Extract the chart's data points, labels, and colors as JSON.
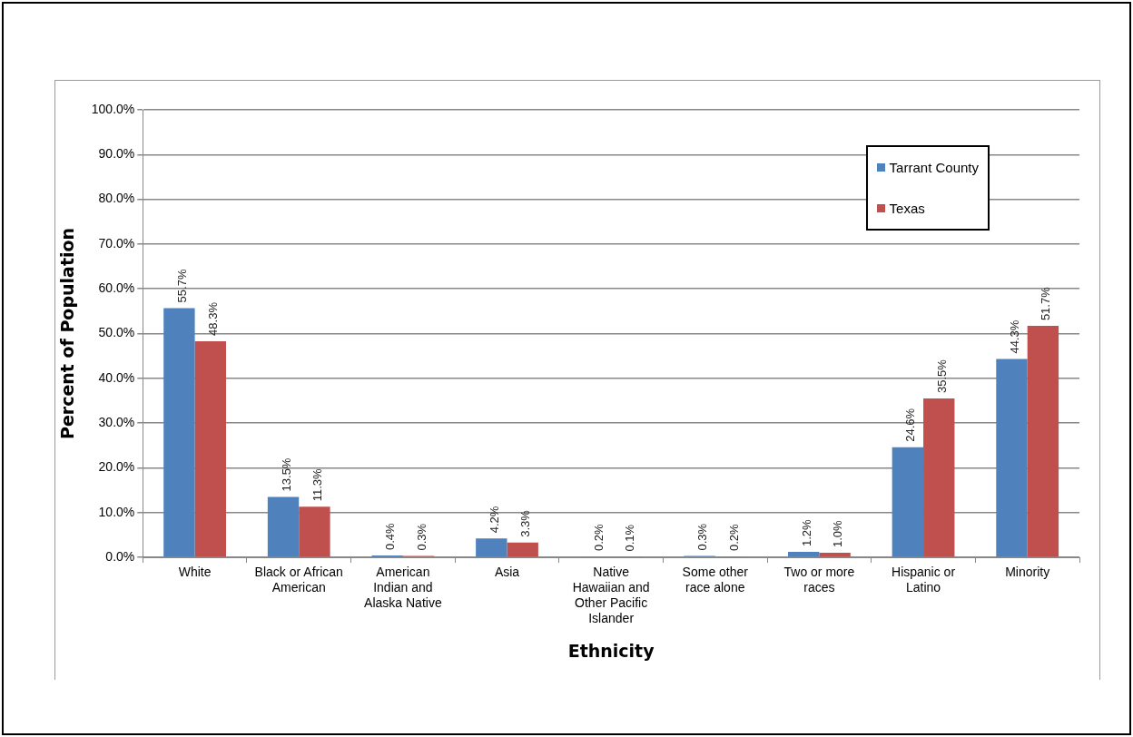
{
  "chart_data": {
    "type": "bar",
    "xlabel": "Ethnicity",
    "ylabel": "Percent of Population",
    "categories": [
      "White",
      "Black or African American",
      "American Indian and Alaska Native",
      "Asia",
      "Native Hawaiian and Other Pacific Islander",
      "Some other race alone",
      "Two or more races",
      "Hispanic or Latino",
      "Minority"
    ],
    "series": [
      {
        "name": "Tarrant County",
        "color": "#4f81bd",
        "values": [
          55.7,
          13.5,
          0.4,
          4.2,
          0.2,
          0.3,
          1.2,
          24.6,
          44.3
        ],
        "value_labels": [
          "55.7%",
          "13.5%",
          "0.4%",
          "4.2%",
          "0.2%",
          "0.3%",
          "1.2%",
          "24.6%",
          "44.3%"
        ]
      },
      {
        "name": "Texas",
        "color": "#c0504d",
        "values": [
          48.3,
          11.3,
          0.3,
          3.3,
          0.1,
          0.2,
          1.0,
          35.5,
          51.7
        ],
        "value_labels": [
          "48.3%",
          "11.3%",
          "0.3%",
          "3.3%",
          "0.1%",
          "0.2%",
          "1.0%",
          "35.5%",
          "51.7%"
        ]
      }
    ],
    "ylim": [
      0,
      100
    ],
    "yticks": [
      {
        "value": 0,
        "label": "0.0%"
      },
      {
        "value": 10,
        "label": "10.0%"
      },
      {
        "value": 20,
        "label": "20.0%"
      },
      {
        "value": 30,
        "label": "30.0%"
      },
      {
        "value": 40,
        "label": "40.0%"
      },
      {
        "value": 50,
        "label": "50.0%"
      },
      {
        "value": 60,
        "label": "60.0%"
      },
      {
        "value": 70,
        "label": "70.0%"
      },
      {
        "value": 80,
        "label": "80.0%"
      },
      {
        "value": 90,
        "label": "90.0%"
      },
      {
        "value": 100,
        "label": "100.0%"
      }
    ],
    "grid": "y",
    "legend": "top right"
  }
}
